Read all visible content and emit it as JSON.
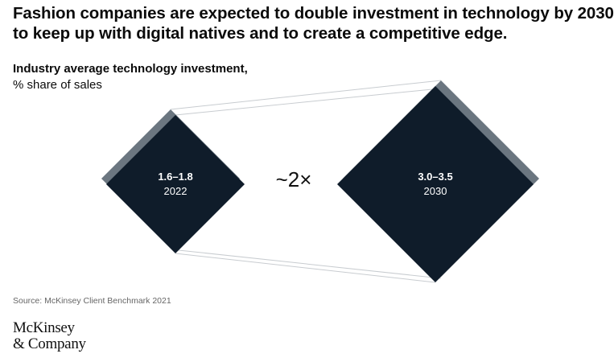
{
  "header": {
    "title_line1": "Fashion companies are expected to double investment in technology by 2030",
    "title_line2": "to keep up with digital natives and to create a competitive edge."
  },
  "subtitle": {
    "bold": "Industry average technology investment,",
    "light": "% share of sales"
  },
  "chart_data": {
    "type": "other",
    "title": "Industry average technology investment, % share of sales",
    "items": [
      {
        "value_label": "1.6–1.8",
        "year": "2022",
        "range": [
          1.6,
          1.8
        ]
      },
      {
        "value_label": "3.0–3.5",
        "year": "2030",
        "range": [
          3.0,
          3.5
        ]
      }
    ],
    "multiplier": "~2×",
    "colors": {
      "diamond": "#0f1c2a",
      "shadow": "#6b7680",
      "connector": "#c8ccd0"
    }
  },
  "footer": {
    "source": "Source: McKinsey Client Benchmark 2021",
    "logo_line1": "McKinsey",
    "logo_line2": "& Company"
  }
}
